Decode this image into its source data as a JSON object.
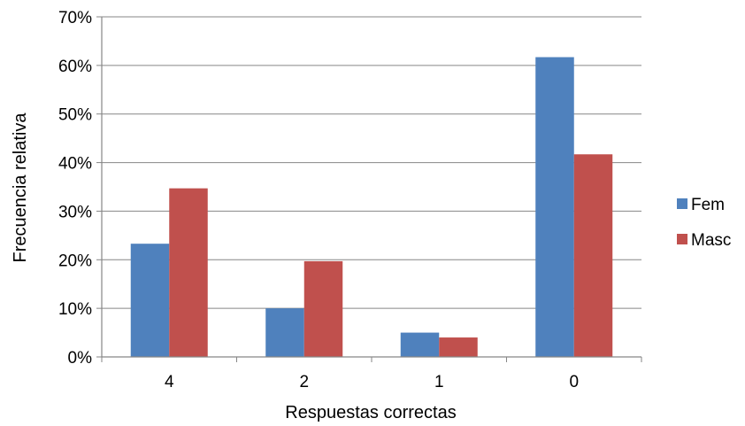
{
  "chart_data": {
    "type": "bar",
    "categories": [
      "4",
      "2",
      "1",
      "0"
    ],
    "series": [
      {
        "name": "Fem",
        "values": [
          0.233,
          0.1,
          0.05,
          0.617
        ],
        "color": "#4f81bd"
      },
      {
        "name": "Masc",
        "values": [
          0.347,
          0.197,
          0.04,
          0.417
        ],
        "color": "#c0504d"
      }
    ],
    "xlabel": "Respuestas correctas",
    "ylabel": "Frecuencia relativa",
    "ylim": [
      0,
      0.7
    ],
    "yticks": [
      0,
      0.1,
      0.2,
      0.3,
      0.4,
      0.5,
      0.6,
      0.7
    ],
    "ytick_labels": [
      "0%",
      "10%",
      "20%",
      "30%",
      "40%",
      "50%",
      "60%",
      "70%"
    ],
    "grid": "horizontal",
    "legend_position": "right"
  }
}
